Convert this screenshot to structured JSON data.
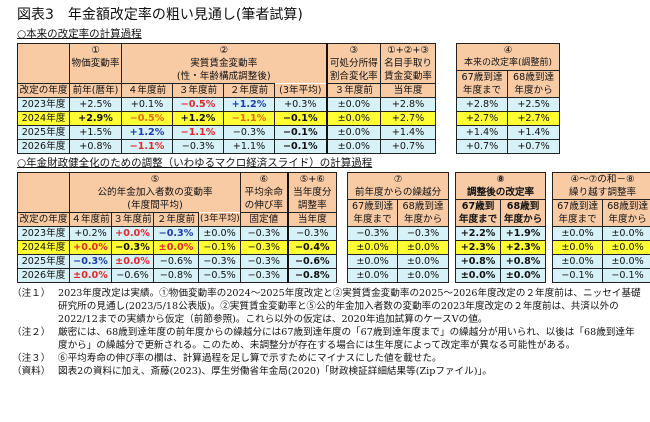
{
  "title": "図表3　年金額改定率の粗い見通し(筆者試算)",
  "section1": {
    "heading": "○本来の改定率の計算過程",
    "headers": {
      "c1_num": "①",
      "c1_label": "物価変動率",
      "c2_num": "②",
      "c2_label": "実質賃金変動率",
      "c2_sub": "(性・年齢構成調整後)",
      "c3_num": "③",
      "c3_label1": "可処分所得",
      "c3_label2": "割合変化率",
      "c4_num": "①+②+③",
      "c4_label1": "名目手取り",
      "c4_label2": "賃金変動率",
      "c5_num": "④",
      "c5_label": "本来の改定率(調整前)",
      "year_col": "改定の年度",
      "sub": [
        "前年(暦年)",
        "４年度前",
        "３年度前",
        "２年度前",
        "(3年平均)",
        "３年度前",
        "当年度"
      ],
      "c5_sub_a1": "67歳到達",
      "c5_sub_a2": "年度まで",
      "c5_sub_b1": "68歳到達",
      "c5_sub_b2": "年度から"
    },
    "rows": [
      {
        "year": "2023年度",
        "v": [
          "+2.5%",
          "+0.1%",
          "−0.5%",
          "+1.2%",
          "+0.3%",
          "±0.0%",
          "+2.8%",
          "+2.8%",
          "+2.5%"
        ]
      },
      {
        "year": "2024年度",
        "v": [
          "+2.9%",
          "−0.5%",
          "+1.2%",
          "−1.1%",
          "−0.1%",
          "±0.0%",
          "+2.7%",
          "+2.7%",
          "+2.7%"
        ]
      },
      {
        "year": "2025年度",
        "v": [
          "+1.5%",
          "+1.2%",
          "−1.1%",
          "−0.3%",
          "−0.1%",
          "±0.0%",
          "+1.4%",
          "+1.4%",
          "+1.4%"
        ]
      },
      {
        "year": "2026年度",
        "v": [
          "+0.8%",
          "−1.1%",
          "−0.3%",
          "+1.1%",
          "−0.1%",
          "±0.0%",
          "+0.7%",
          "+0.7%",
          "+0.7%"
        ]
      }
    ]
  },
  "section2": {
    "heading": "○年金財政健全化のための調整（いわゆるマクロ経済スライド）の計算過程",
    "headers": {
      "c5_num": "⑤",
      "c5_label": "公的年金加入者数の変動率",
      "c5_sub": "(年度間平均)",
      "c6_num": "⑥",
      "c6_label1": "平均余命",
      "c6_label2": "の伸び率",
      "c56_num": "⑤+⑥",
      "c56_label1": "当年度分",
      "c56_label2": "調整率",
      "c7_num": "⑦",
      "c7_label": "前年度からの繰越分",
      "c8_num": "⑧",
      "c8_label": "調整後の改定率",
      "c9_num": "④〜⑦の和－⑧",
      "c9_label": "繰り越す調整率",
      "year_col": "改定の年度",
      "sub": [
        "４年度前",
        "３年度前",
        "２年度前",
        "(3年平均)",
        "固定値",
        "当年度"
      ],
      "age_a1": "67歳到達",
      "age_a2": "年度まで",
      "age_b1": "68歳到達",
      "age_b2": "年度から",
      "age8_a1": "67歳到",
      "age8_b1": "68歳到"
    },
    "rows": [
      {
        "year": "2023年度",
        "v": [
          "+0.2%",
          "+0.0%",
          "−0.3%",
          "±0.0%",
          "−0.3%",
          "−0.3%",
          "−0.3%",
          "−0.3%",
          "+2.2%",
          "+1.9%",
          "±0.0%",
          "±0.0%"
        ]
      },
      {
        "year": "2024年度",
        "v": [
          "+0.0%",
          "−0.3%",
          "±0.0%",
          "−0.1%",
          "−0.3%",
          "−0.4%",
          "±0.0%",
          "±0.0%",
          "+2.3%",
          "+2.3%",
          "±0.0%",
          "±0.0%"
        ]
      },
      {
        "year": "2025年度",
        "v": [
          "−0.3%",
          "±0.0%",
          "−0.6%",
          "−0.3%",
          "−0.3%",
          "−0.6%",
          "±0.0%",
          "±0.0%",
          "+0.8%",
          "+0.8%",
          "±0.0%",
          "±0.0%"
        ]
      },
      {
        "year": "2026年度",
        "v": [
          "±0.0%",
          "−0.6%",
          "−0.8%",
          "−0.5%",
          "−0.3%",
          "−0.8%",
          "±0.0%",
          "±0.0%",
          "±0.0%",
          "±0.0%",
          "−0.1%",
          "−0.1%"
        ]
      }
    ]
  },
  "notes": [
    {
      "label": "（注１）",
      "text": "2023年度改定は実績。①物価変動率の2024～2025年度改定と②実質賃金変動率の2025～2026年度改定の２年度前は、ニッセイ基礎研究所の見通し(2023/5/18公表版)。②実質賃金変動率と⑤公的年金加入者数の変動率の2023年度改定の２年度前は、共済以外の2022/12までの実績から仮定（前節参照)。これら以外の仮定は、2020年追加試算のケースⅤの値。"
    },
    {
      "label": "（注２）",
      "text": "厳密には、68歳到達年度の前年度からの繰越分には67歳到達年度の「67歳到達年度まで」の繰越分が用いられ、以後は「68歳到達年度から」の繰越分で更新される。このため、未調整分が存在する場合には生年度によって改定率が異なる可能性がある。"
    },
    {
      "label": "（注３）",
      "text": "⑥平均寿命の伸び率の欄は、計算過程を足し算で示すためにマイナスにした値を載せた。"
    },
    {
      "label": "（資料）",
      "text": "図表2の資料に加え、斎藤(2023)、厚生労働省年金局(2020)「財政検証詳細結果等(Zipファイル)」。"
    }
  ],
  "colors": {
    "header_bg": "#f8cba5",
    "row_bg": "#d6f2f8",
    "highlight_bg": "#ffff33",
    "red": "#e3262b",
    "blue": "#1e3aa8",
    "orange": "#e86a10"
  }
}
